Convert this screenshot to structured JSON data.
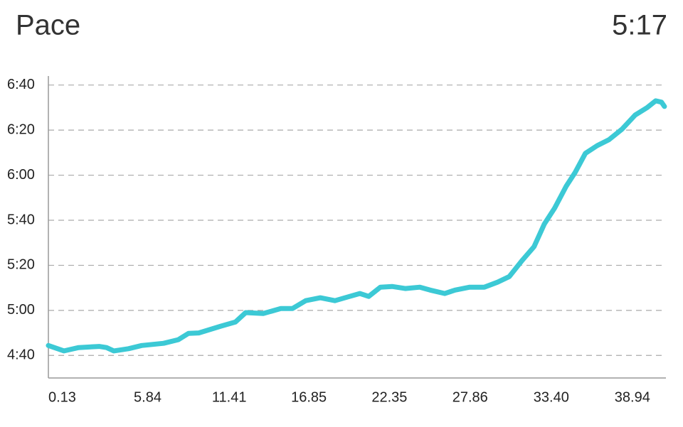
{
  "header": {
    "title": "Pace",
    "value": "5:17"
  },
  "chart_data": {
    "type": "line",
    "color": "#3cc9d5",
    "grid": true,
    "xlim": [
      0.13,
      42.3
    ],
    "xticks": [
      0.13,
      5.84,
      11.41,
      16.85,
      22.35,
      27.86,
      {
        "value": 33.4,
        "label": "33.40"
      },
      38.94
    ],
    "ylim": [
      270,
      404
    ],
    "yticks": [
      {
        "value": 280,
        "label": "4:40"
      },
      {
        "value": 300,
        "label": "5:00"
      },
      {
        "value": 320,
        "label": "5:20"
      },
      {
        "value": 340,
        "label": "5:40"
      },
      {
        "value": 360,
        "label": "6:00"
      },
      {
        "value": 380,
        "label": "6:20"
      },
      {
        "value": 400,
        "label": "6:40"
      }
    ],
    "x": [
      0.13,
      1.2,
      2.2,
      3.6,
      4.1,
      4.6,
      5.6,
      6.5,
      8.0,
      9.0,
      9.7,
      10.4,
      11.9,
      12.9,
      13.6,
      14.8,
      16.0,
      16.8,
      17.7,
      18.7,
      19.7,
      20.6,
      21.4,
      22.0,
      22.8,
      23.6,
      24.5,
      25.5,
      26.2,
      27.2,
      27.9,
      28.9,
      29.9,
      30.8,
      31.6,
      32.5,
      33.3,
      34.0,
      34.7,
      35.5,
      36.1,
      36.8,
      37.6,
      38.4,
      39.3,
      40.2,
      41.0,
      41.6,
      42.0,
      42.2
    ],
    "series": [
      {
        "values": [
          284.4,
          282,
          283.5,
          284,
          283.5,
          282,
          283,
          284.4,
          285.4,
          287,
          289.8,
          290,
          293,
          294.8,
          299,
          298.6,
          300.8,
          300.8,
          304.3,
          305.6,
          304.3,
          306,
          307.5,
          306.2,
          310.3,
          310.6,
          309.7,
          310.3,
          309,
          307.5,
          309,
          310.3,
          310.3,
          312.5,
          315,
          322.3,
          328.3,
          338.4,
          345.4,
          355.2,
          361.2,
          369.7,
          373.1,
          375.7,
          380.4,
          386.7,
          389.9,
          393,
          392.4,
          390.5
        ]
      }
    ]
  }
}
